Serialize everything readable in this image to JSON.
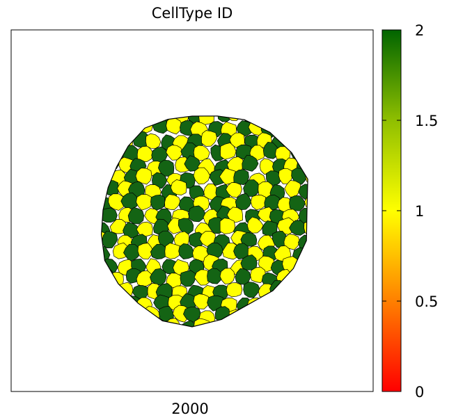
{
  "chart_data": {
    "type": "heatmap",
    "title": "CellType ID",
    "xlabel": "2000",
    "ylabel": "",
    "colorbar": {
      "min": 0,
      "max": 2,
      "ticks": [
        {
          "value": 0,
          "label": "0"
        },
        {
          "value": 0.5,
          "label": "0.5"
        },
        {
          "value": 1,
          "label": "1"
        },
        {
          "value": 1.5,
          "label": "1.5"
        },
        {
          "value": 2,
          "label": "2"
        }
      ],
      "colormap": [
        {
          "value": 0,
          "color": "#ff0000"
        },
        {
          "value": 0.5,
          "color": "#ff8000"
        },
        {
          "value": 1,
          "color": "#ffff00"
        },
        {
          "value": 1.5,
          "color": "#8fbf00"
        },
        {
          "value": 2,
          "color": "#006400"
        }
      ]
    },
    "cell_types": [
      {
        "id": 1,
        "color": "#ffff00"
      },
      {
        "id": 2,
        "color": "#146414"
      }
    ],
    "background_color": "#ffffff",
    "cell_border_color": "#000000"
  }
}
